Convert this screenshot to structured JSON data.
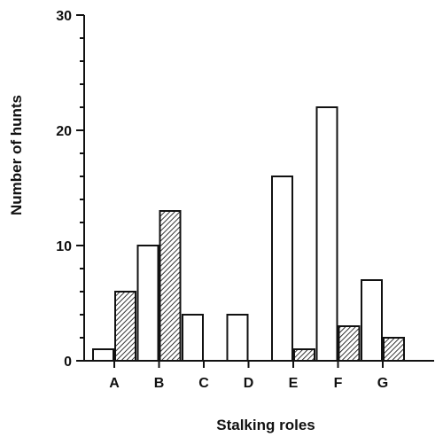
{
  "chart_data": {
    "type": "bar",
    "categories": [
      "A",
      "B",
      "C",
      "D",
      "E",
      "F",
      "G"
    ],
    "series": [
      {
        "values": [
          1,
          10,
          4,
          4,
          16,
          22,
          7
        ],
        "fill": "none"
      },
      {
        "values": [
          6,
          13,
          0,
          0,
          1,
          3,
          2
        ],
        "fill": "hatched"
      }
    ],
    "xlabel": "Stalking roles",
    "ylabel": "Number of hunts",
    "ylim": [
      0,
      30
    ],
    "yticks": [
      0,
      10,
      20,
      30
    ],
    "y_minor_step": 2,
    "grid": false,
    "legend": "none"
  }
}
